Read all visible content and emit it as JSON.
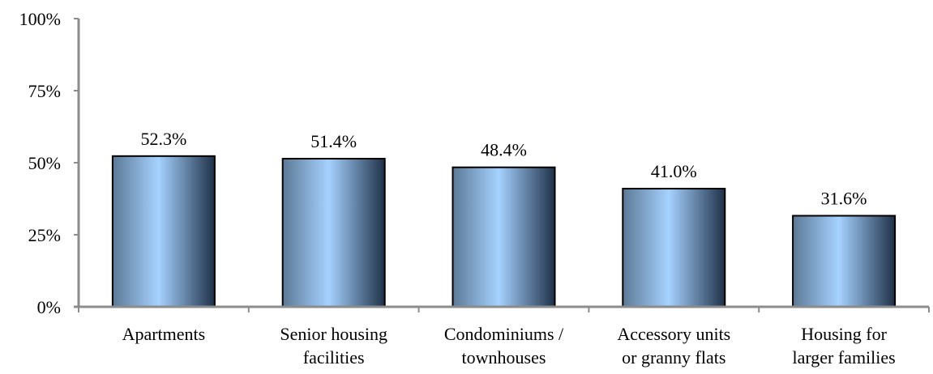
{
  "chart_data": {
    "type": "bar",
    "title": "",
    "xlabel": "",
    "ylabel": "",
    "categories": [
      [
        "Apartments"
      ],
      [
        "Senior housing",
        "facilities"
      ],
      [
        "Condominiums /",
        "townhouses"
      ],
      [
        "Accessory units",
        "or granny flats"
      ],
      [
        "Housing for",
        "larger families"
      ]
    ],
    "values": [
      52.3,
      51.4,
      48.4,
      41.0,
      31.6
    ],
    "value_labels": [
      "52.3%",
      "51.4%",
      "48.4%",
      "41.0%",
      "31.6%"
    ],
    "ylim": [
      0,
      100
    ],
    "yticks": [
      0,
      25,
      50,
      75,
      100
    ],
    "ytick_labels": [
      "0%",
      "25%",
      "50%",
      "75%",
      "100%"
    ],
    "grid": false,
    "legend": "none",
    "colors": {
      "bar_edge": "#5c7996",
      "bar_center": "#a6d2ff",
      "bar_dark": "#1f3148",
      "bar_outline": "#000000",
      "axis": "#8c8c8c"
    }
  }
}
